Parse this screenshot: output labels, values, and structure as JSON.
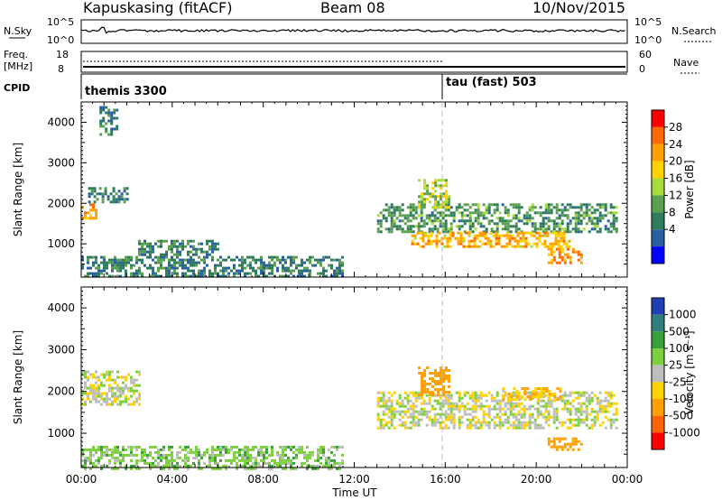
{
  "header": {
    "title": "Kapuskasing (fitACF)",
    "beam": "Beam 08",
    "date": "10/Nov/2015"
  },
  "panels": {
    "nsky": {
      "left_label": "N.Sky",
      "left_ticks": [
        "10^5",
        "10^0"
      ],
      "right_label": "N.Search",
      "right_ticks": [
        "10^5",
        "10^0"
      ]
    },
    "freq": {
      "left_label_1": "Freq.",
      "left_label_2": "[MHz]",
      "left_ticks": [
        "18",
        "8"
      ],
      "right_label": "Nave",
      "right_ticks": [
        "60",
        "0"
      ]
    },
    "cpid": {
      "label": "CPID",
      "segments": [
        {
          "name": "themis 3300",
          "start_hour": 0
        },
        {
          "name": "tau (fast) 503",
          "start_hour": 16
        }
      ]
    }
  },
  "axes": {
    "ylabel": "Slant Range [km]",
    "xlabel": "Time UT",
    "x_ticks": [
      "00:00",
      "04:00",
      "08:00",
      "12:00",
      "16:00",
      "20:00",
      "00:00"
    ],
    "y_ticks": [
      "1000",
      "2000",
      "3000",
      "4000"
    ]
  },
  "colorbars": {
    "power": {
      "label": "Power [dB]",
      "ticks": [
        "28",
        "24",
        "20",
        "16",
        "12",
        "8",
        "4"
      ],
      "colors": [
        "#ff0000",
        "#ff6a00",
        "#ffa000",
        "#ffd200",
        "#a8dc3c",
        "#5aa050",
        "#2e7d5a",
        "#2a5fa0",
        "#0000ff"
      ]
    },
    "velocity": {
      "label": "Velocity [m s⁻¹]",
      "ticks": [
        "1000",
        "500",
        "100",
        "25",
        "-25",
        "-100",
        "-500",
        "-1000"
      ],
      "colors": [
        "#1f3fb4",
        "#2f7f7f",
        "#3aa03a",
        "#7ed040",
        "#bebebe",
        "#ffd200",
        "#ffa000",
        "#ff6400",
        "#ff0000"
      ]
    }
  },
  "chart_data": {
    "type": "heatmap",
    "time_range_hours": [
      0,
      24
    ],
    "range_km": [
      180,
      4500
    ],
    "cpid_change_hour": 16,
    "power_regions": [
      {
        "t": [
          0.0,
          0.6
        ],
        "r": [
          1650,
          2000
        ],
        "power_db": 26
      },
      {
        "t": [
          0.3,
          2.0
        ],
        "r": [
          2000,
          2400
        ],
        "power_db": 10
      },
      {
        "t": [
          0.8,
          1.6
        ],
        "r": [
          3700,
          4400
        ],
        "power_db": 9
      },
      {
        "t": [
          0.0,
          11.5
        ],
        "r": [
          180,
          700
        ],
        "power_db": 10
      },
      {
        "t": [
          2.5,
          6.0
        ],
        "r": [
          700,
          1100
        ],
        "power_db": 11
      },
      {
        "t": [
          13.0,
          23.5
        ],
        "r": [
          1300,
          2000
        ],
        "power_db": 12
      },
      {
        "t": [
          14.5,
          21.5
        ],
        "r": [
          900,
          1300
        ],
        "power_db": 24
      },
      {
        "t": [
          20.5,
          22.0
        ],
        "r": [
          500,
          900
        ],
        "power_db": 28
      },
      {
        "t": [
          14.8,
          16.2
        ],
        "r": [
          1900,
          2600
        ],
        "power_db": 18
      }
    ],
    "velocity_regions": [
      {
        "t": [
          0.0,
          2.5
        ],
        "r": [
          1700,
          2500
        ],
        "velocity": 0
      },
      {
        "t": [
          0.0,
          11.5
        ],
        "r": [
          180,
          700
        ],
        "velocity": 60
      },
      {
        "t": [
          13.0,
          23.5
        ],
        "r": [
          1100,
          2000
        ],
        "velocity": 0
      },
      {
        "t": [
          14.8,
          16.2
        ],
        "r": [
          1900,
          2600
        ],
        "velocity": -300
      },
      {
        "t": [
          20.5,
          22.0
        ],
        "r": [
          600,
          900
        ],
        "velocity": -300
      },
      {
        "t": [
          18.5,
          21.0
        ],
        "r": [
          1800,
          2100
        ],
        "velocity": -80
      }
    ]
  }
}
